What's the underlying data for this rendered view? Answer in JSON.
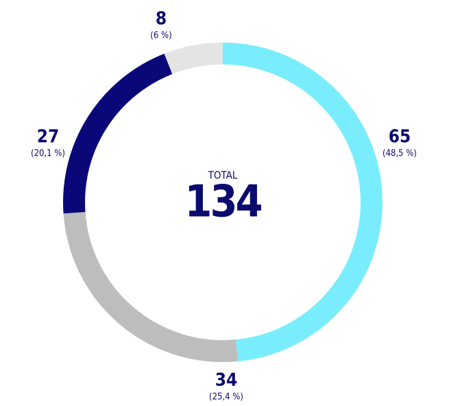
{
  "chart_data": {
    "type": "donut",
    "categories": [
      null,
      null,
      null,
      null
    ],
    "values": [
      65,
      34,
      27,
      8
    ],
    "percent_labels": [
      "(48,5 %)",
      "(25,4 %)",
      "(20,1 %)",
      "(6 %)"
    ],
    "colors": [
      "#7aedfc",
      "#bdbdbd",
      "#0a0878",
      "#e4e4e4"
    ],
    "center_label": "TOTAL",
    "total": 134
  }
}
